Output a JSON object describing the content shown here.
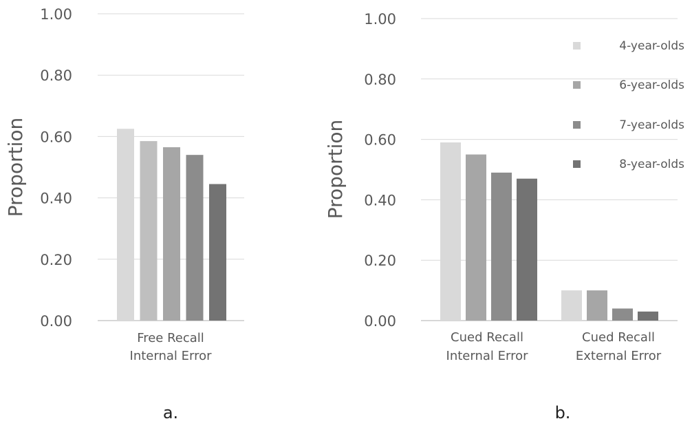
{
  "chart_data": [
    {
      "type": "bar",
      "panel_label": "a.",
      "ylabel": "Proportion",
      "ylim": [
        0,
        1
      ],
      "yticks": [
        "0.00",
        "0.20",
        "0.40",
        "0.60",
        "0.80",
        "1.00"
      ],
      "grid": true,
      "categories": [
        [
          "Free Recall",
          "Internal Error"
        ]
      ],
      "series": [
        {
          "values": [
            0.625
          ],
          "color": "#d9d9d9"
        },
        {
          "values": [
            0.585
          ],
          "color": "#bfbfbf"
        },
        {
          "values": [
            0.565
          ],
          "color": "#a6a6a6"
        },
        {
          "values": [
            0.54
          ],
          "color": "#8c8c8c"
        },
        {
          "values": [
            0.445
          ],
          "color": "#737373"
        }
      ]
    },
    {
      "type": "bar",
      "panel_label": "b.",
      "ylabel": "Proportion",
      "ylim": [
        0,
        1
      ],
      "yticks": [
        "0.00",
        "0.20",
        "0.40",
        "0.60",
        "0.80",
        "1.00"
      ],
      "grid": true,
      "legend_position": "right",
      "categories": [
        [
          "Cued Recall",
          "Internal Error"
        ],
        [
          "Cued Recall",
          "External Error"
        ]
      ],
      "series": [
        {
          "name": "4-year-olds",
          "values": [
            0.59,
            0.1
          ],
          "color": "#d9d9d9"
        },
        {
          "name": "6-year-olds",
          "values": [
            0.55,
            0.1
          ],
          "color": "#a6a6a6"
        },
        {
          "name": "7-year-olds",
          "values": [
            0.49,
            0.04
          ],
          "color": "#8c8c8c"
        },
        {
          "name": "8-year-olds",
          "values": [
            0.47,
            0.03
          ],
          "color": "#737373"
        }
      ]
    }
  ]
}
